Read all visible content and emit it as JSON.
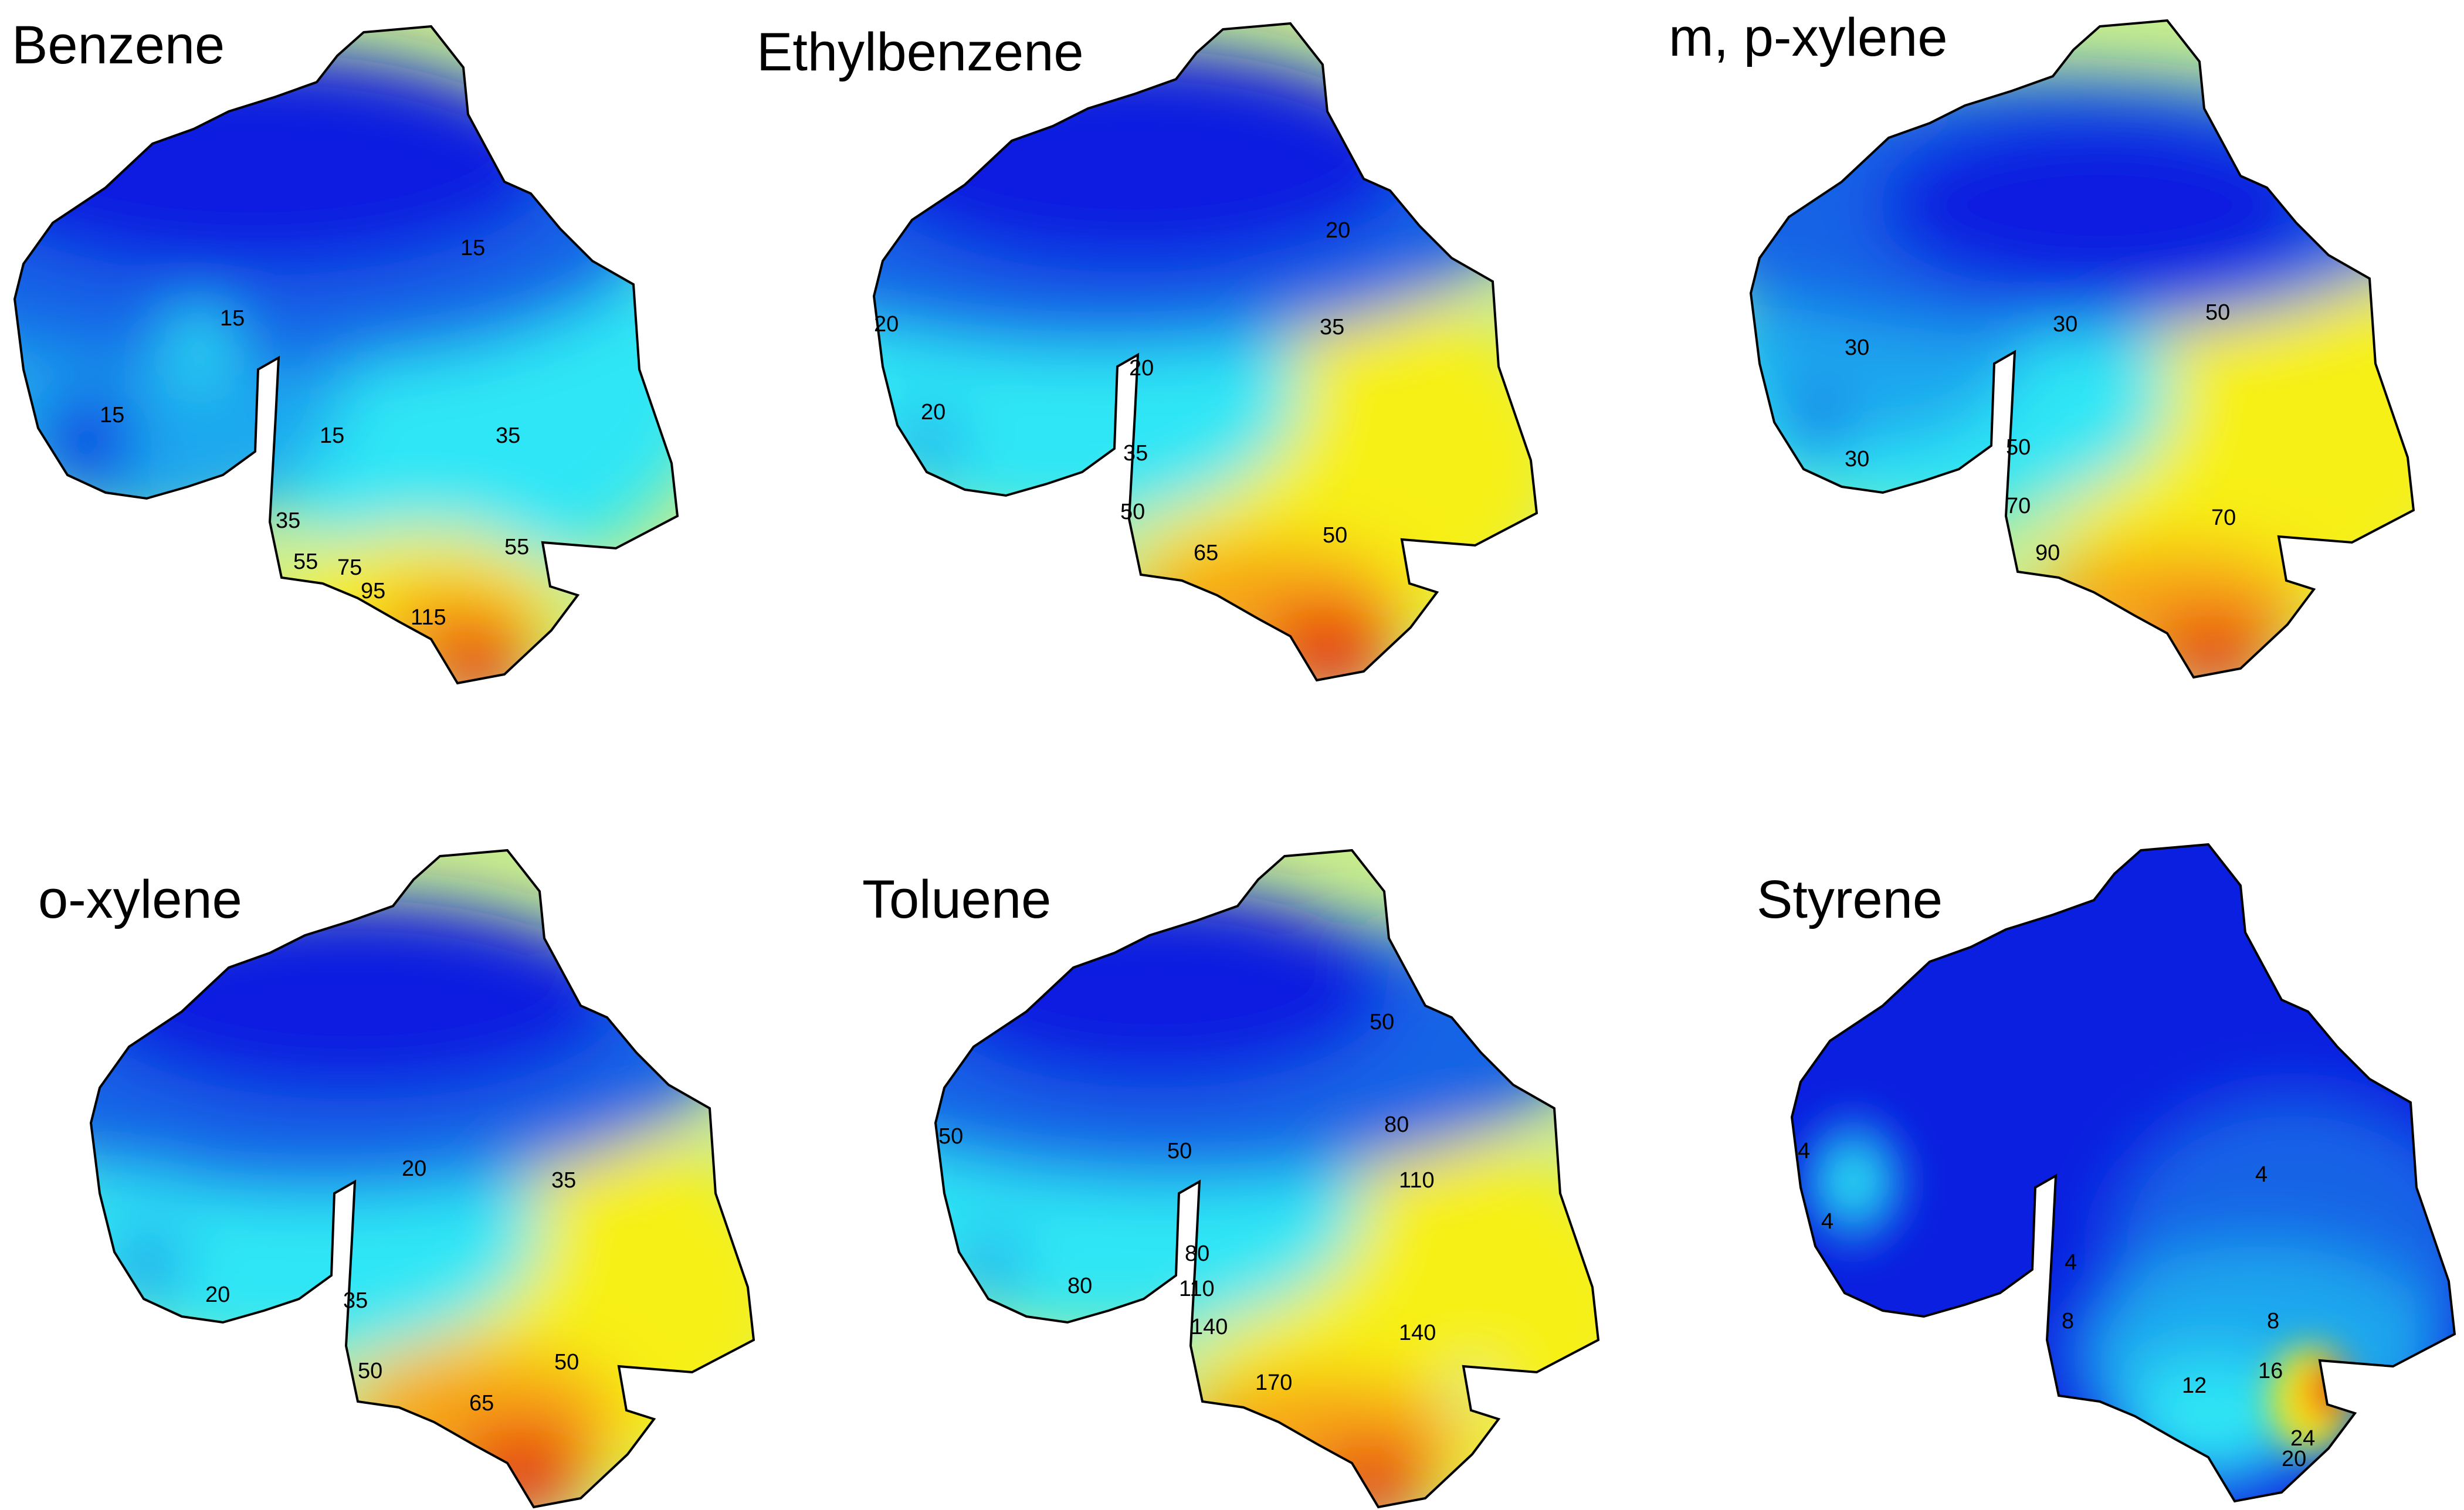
{
  "panels": [
    {
      "title": "Benzene",
      "contour_labels": [
        "15",
        "15",
        "15",
        "15",
        "35",
        "35",
        "55",
        "55",
        "75",
        "95",
        "115"
      ]
    },
    {
      "title": "Ethylbenzene",
      "contour_labels": [
        "20",
        "20",
        "20",
        "20",
        "35",
        "35",
        "50",
        "50",
        "65"
      ]
    },
    {
      "title": "m, p-xylene",
      "contour_labels": [
        "30",
        "30",
        "30",
        "50",
        "50",
        "70",
        "70",
        "90"
      ]
    },
    {
      "title": "o-xylene",
      "contour_labels": [
        "20",
        "20",
        "35",
        "35",
        "50",
        "50",
        "65"
      ]
    },
    {
      "title": "Toluene",
      "contour_labels": [
        "50",
        "50",
        "50",
        "80",
        "80",
        "80",
        "110",
        "110",
        "140",
        "140",
        "170"
      ]
    },
    {
      "title": "Styrene",
      "contour_labels": [
        "4",
        "4",
        "4",
        "4",
        "8",
        "8",
        "12",
        "16",
        "20",
        "24"
      ]
    }
  ],
  "colors": {
    "low": "#0a1fe0",
    "low_mid": "#1464e6",
    "mid": "#1aa8ee",
    "cyan": "#2ee6f5",
    "yellow_green": "#c9ef8c",
    "yellow": "#f7f018",
    "orange": "#f7a318",
    "high": "#e61a0a",
    "outline": "#000000"
  }
}
